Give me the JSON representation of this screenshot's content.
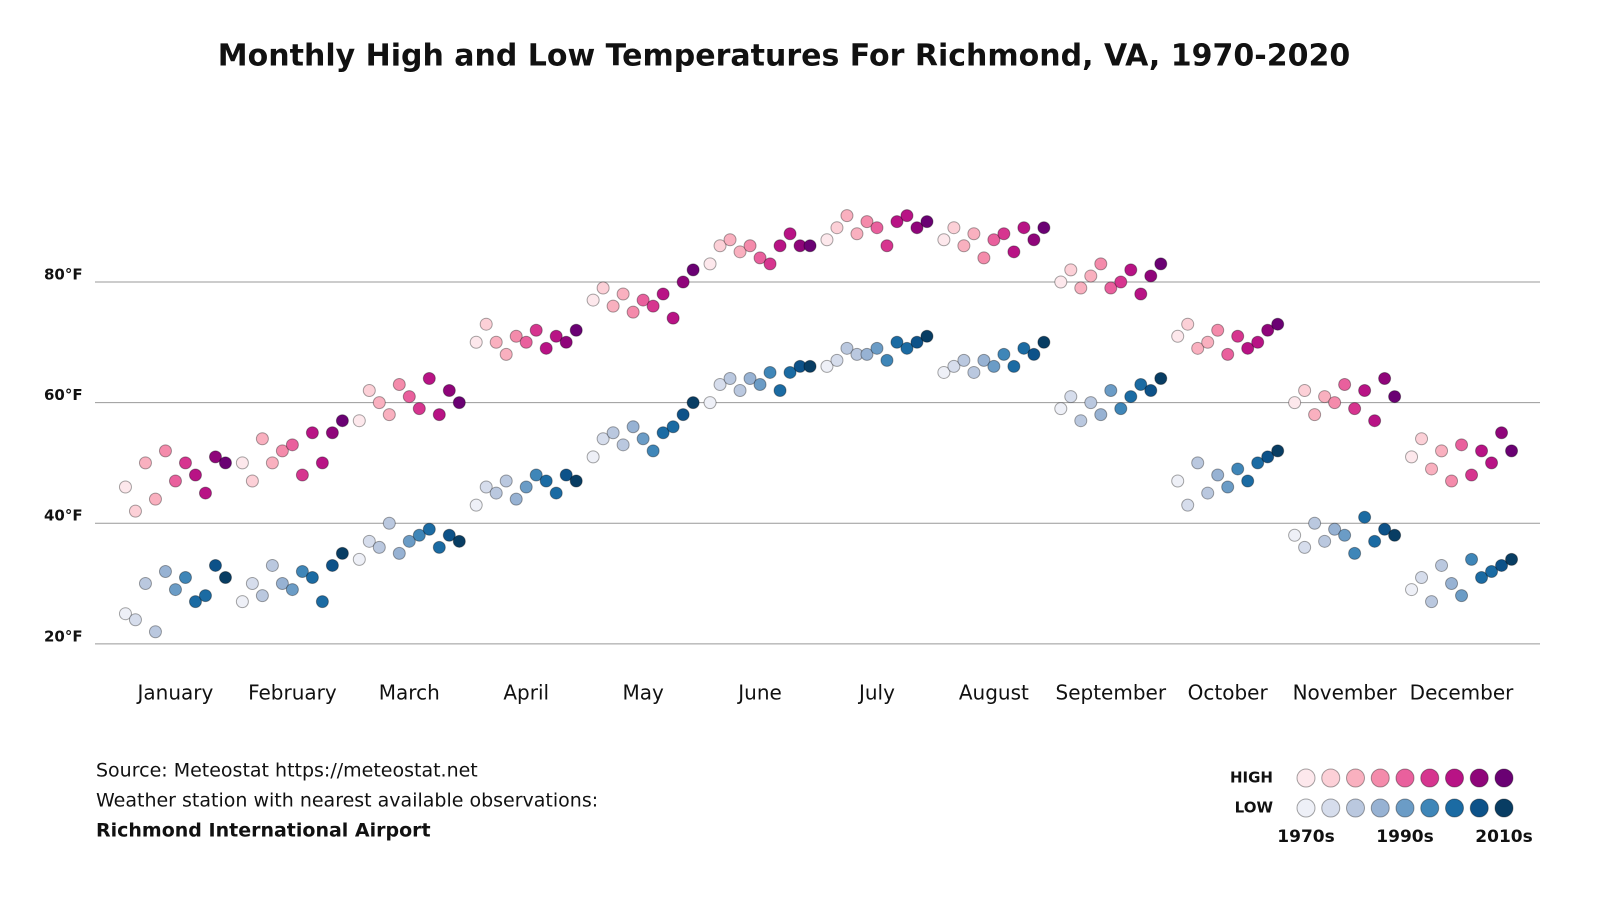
{
  "chart_data": {
    "type": "scatter",
    "title": "Monthly High and Low Temperatures For Richmond, VA, 1970-2020",
    "categories": [
      "January",
      "February",
      "March",
      "April",
      "May",
      "June",
      "July",
      "August",
      "September",
      "October",
      "November",
      "December"
    ],
    "series": [
      {
        "name": "HIGH",
        "colors": [
          "#fde8ec",
          "#fcd0d7",
          "#f9b0bf",
          "#f48bab",
          "#e9609d",
          "#d6358f",
          "#b81385",
          "#8f057a",
          "#6a0173"
        ],
        "values": [
          [
            46,
            42,
            50,
            44,
            52,
            47,
            50,
            48,
            45,
            51,
            50
          ],
          [
            50,
            47,
            54,
            50,
            52,
            53,
            48,
            55,
            50,
            55,
            57
          ],
          [
            57,
            62,
            60,
            58,
            63,
            61,
            59,
            64,
            58,
            62,
            60
          ],
          [
            70,
            73,
            70,
            68,
            71,
            70,
            72,
            69,
            71,
            70,
            72
          ],
          [
            77,
            79,
            76,
            78,
            75,
            77,
            76,
            78,
            74,
            80,
            82
          ],
          [
            83,
            86,
            87,
            85,
            86,
            84,
            83,
            86,
            88,
            86,
            86
          ],
          [
            87,
            89,
            91,
            88,
            90,
            89,
            86,
            90,
            91,
            89,
            90
          ],
          [
            87,
            89,
            86,
            88,
            84,
            87,
            88,
            85,
            89,
            87,
            89
          ],
          [
            80,
            82,
            79,
            81,
            83,
            79,
            80,
            82,
            78,
            81,
            83
          ],
          [
            71,
            73,
            69,
            70,
            72,
            68,
            71,
            69,
            70,
            72,
            73
          ],
          [
            60,
            62,
            58,
            61,
            60,
            63,
            59,
            62,
            57,
            64,
            61
          ],
          [
            51,
            54,
            49,
            52,
            47,
            53,
            48,
            52,
            50,
            55,
            52
          ]
        ]
      },
      {
        "name": "LOW",
        "colors": [
          "#eef0f7",
          "#d6ddec",
          "#bac8df",
          "#97b2d3",
          "#6b9cc6",
          "#3f86b8",
          "#1b6ba3",
          "#0d5289",
          "#083d63"
        ],
        "values": [
          [
            25,
            24,
            30,
            22,
            32,
            29,
            31,
            27,
            28,
            33,
            31
          ],
          [
            27,
            30,
            28,
            33,
            30,
            29,
            32,
            31,
            27,
            33,
            35
          ],
          [
            34,
            37,
            36,
            40,
            35,
            37,
            38,
            39,
            36,
            38,
            37
          ],
          [
            43,
            46,
            45,
            47,
            44,
            46,
            48,
            47,
            45,
            48,
            47
          ],
          [
            51,
            54,
            55,
            53,
            56,
            54,
            52,
            55,
            56,
            58,
            60
          ],
          [
            60,
            63,
            64,
            62,
            64,
            63,
            65,
            62,
            65,
            66,
            66
          ],
          [
            66,
            67,
            69,
            68,
            68,
            69,
            67,
            70,
            69,
            70,
            71
          ],
          [
            65,
            66,
            67,
            65,
            67,
            66,
            68,
            66,
            69,
            68,
            70
          ],
          [
            59,
            61,
            57,
            60,
            58,
            62,
            59,
            61,
            63,
            62,
            64
          ],
          [
            47,
            43,
            50,
            45,
            48,
            46,
            49,
            47,
            50,
            51,
            52
          ],
          [
            38,
            36,
            40,
            37,
            39,
            38,
            35,
            41,
            37,
            39,
            38
          ],
          [
            29,
            31,
            27,
            33,
            30,
            28,
            34,
            31,
            32,
            33,
            34
          ]
        ]
      }
    ],
    "ylim": [
      15,
      95
    ],
    "yticks": [
      {
        "value": 20,
        "label": "20°F"
      },
      {
        "value": 40,
        "label": "40°F"
      },
      {
        "value": 60,
        "label": "60°F"
      },
      {
        "value": 80,
        "label": "80°F"
      }
    ],
    "grid": true,
    "legend_labels": [
      "1970s",
      "1990s",
      "2010s"
    ]
  },
  "source": [
    "Source: Meteostat https://meteostat.net",
    "Weather station with nearest available observations:",
    "Richmond International Airport"
  ]
}
